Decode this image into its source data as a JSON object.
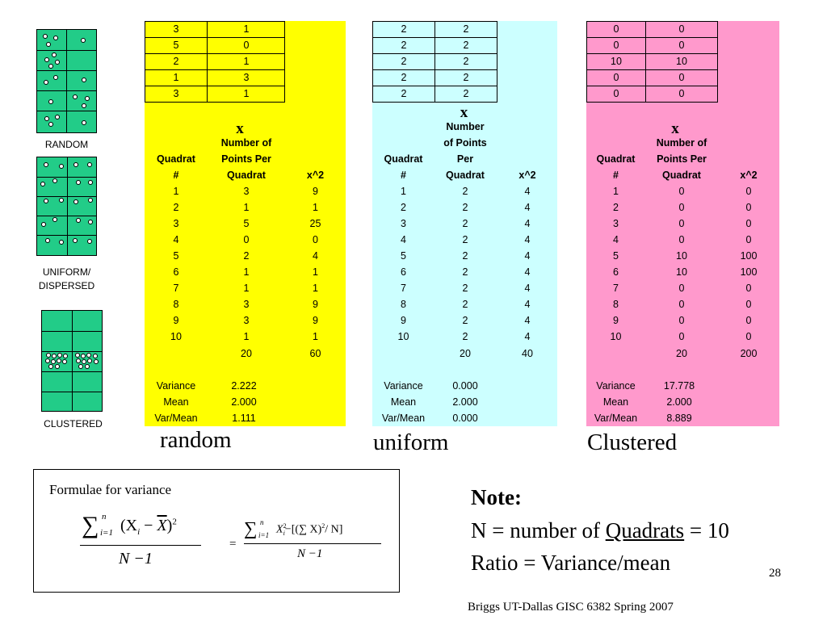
{
  "diagrams": [
    {
      "label_lines": [
        "RANDOM"
      ]
    },
    {
      "label_lines": [
        "UNIFORM/",
        "DISPERSED"
      ]
    },
    {
      "label_lines": [
        "CLUSTERED"
      ]
    }
  ],
  "headers": {
    "x_symbol": "x",
    "quadrat_lines": [
      "Quadrat",
      "#"
    ],
    "points_lines_a": [
      "Number of",
      "Points Per",
      "Quadrat"
    ],
    "points_lines_b": [
      "Number",
      "of Points",
      "Per",
      "Quadrat"
    ],
    "xsq": "x^2"
  },
  "panels": [
    {
      "id": "random",
      "color": "#ffff00",
      "top_table": [
        [
          "3",
          "1"
        ],
        [
          "5",
          "0"
        ],
        [
          "2",
          "1"
        ],
        [
          "1",
          "3"
        ],
        [
          "3",
          "1"
        ]
      ],
      "rows": [
        [
          "1",
          "3",
          "9"
        ],
        [
          "2",
          "1",
          "1"
        ],
        [
          "3",
          "5",
          "25"
        ],
        [
          "4",
          "0",
          "0"
        ],
        [
          "5",
          "2",
          "4"
        ],
        [
          "6",
          "1",
          "1"
        ],
        [
          "7",
          "1",
          "1"
        ],
        [
          "8",
          "3",
          "9"
        ],
        [
          "9",
          "3",
          "9"
        ],
        [
          "10",
          "1",
          "1"
        ]
      ],
      "totals": [
        "20",
        "60"
      ],
      "stats": [
        [
          "Variance",
          "2.222"
        ],
        [
          "Mean",
          "2.000"
        ],
        [
          "Var/Mean",
          "1.111"
        ]
      ],
      "label": "random"
    },
    {
      "id": "uniform",
      "color": "#ccffff",
      "top_table": [
        [
          "2",
          "2"
        ],
        [
          "2",
          "2"
        ],
        [
          "2",
          "2"
        ],
        [
          "2",
          "2"
        ],
        [
          "2",
          "2"
        ]
      ],
      "rows": [
        [
          "1",
          "2",
          "4"
        ],
        [
          "2",
          "2",
          "4"
        ],
        [
          "3",
          "2",
          "4"
        ],
        [
          "4",
          "2",
          "4"
        ],
        [
          "5",
          "2",
          "4"
        ],
        [
          "6",
          "2",
          "4"
        ],
        [
          "7",
          "2",
          "4"
        ],
        [
          "8",
          "2",
          "4"
        ],
        [
          "9",
          "2",
          "4"
        ],
        [
          "10",
          "2",
          "4"
        ]
      ],
      "totals": [
        "20",
        "40"
      ],
      "stats": [
        [
          "Variance",
          "0.000"
        ],
        [
          "Mean",
          "2.000"
        ],
        [
          "Var/Mean",
          "0.000"
        ]
      ],
      "label": "uniform"
    },
    {
      "id": "clustered",
      "color": "#ff99cc",
      "top_table": [
        [
          "0",
          "0"
        ],
        [
          "0",
          "0"
        ],
        [
          "10",
          "10"
        ],
        [
          "0",
          "0"
        ],
        [
          "0",
          "0"
        ]
      ],
      "rows": [
        [
          "1",
          "0",
          "0"
        ],
        [
          "2",
          "0",
          "0"
        ],
        [
          "3",
          "0",
          "0"
        ],
        [
          "4",
          "0",
          "0"
        ],
        [
          "5",
          "10",
          "100"
        ],
        [
          "6",
          "10",
          "100"
        ],
        [
          "7",
          "0",
          "0"
        ],
        [
          "8",
          "0",
          "0"
        ],
        [
          "9",
          "0",
          "0"
        ],
        [
          "10",
          "0",
          "0"
        ]
      ],
      "totals": [
        "20",
        "200"
      ],
      "stats": [
        [
          "Variance",
          "17.778"
        ],
        [
          "Mean",
          "2.000"
        ],
        [
          "Var/Mean",
          "8.889"
        ]
      ],
      "label": "Clustered"
    }
  ],
  "formula_box": {
    "title": "Formulae for variance",
    "f1_sigma": "∑",
    "f1_sup": "n",
    "f1_sub": "i=1",
    "f1_body": "(X",
    "f1_body_sub": "i",
    "f1_minus": " − ",
    "f1_xbar": "X",
    "f1_close": ")",
    "f1_exp": "2",
    "f1_den": "N −1",
    "eq": "=",
    "f2_sigma": "∑",
    "f2_sup": "n",
    "f2_sub": "i=1",
    "f2_x": "X",
    "f2_xsub": "i",
    "f2_xsup": "2",
    "f2_rest": "−[(∑ X)",
    "f2_rest_sup": "2",
    "f2_tail": "/ N]",
    "f2_den": "N −1"
  },
  "note": {
    "title": "Note:",
    "line1_pre": "N = number of ",
    "line1_link": "Quadrats",
    "line1_post": " = 10",
    "line2": "Ratio =  Variance/mean"
  },
  "page_number": "28",
  "footer": "Briggs  UT-Dallas  GISC 6382 Spring 2007"
}
